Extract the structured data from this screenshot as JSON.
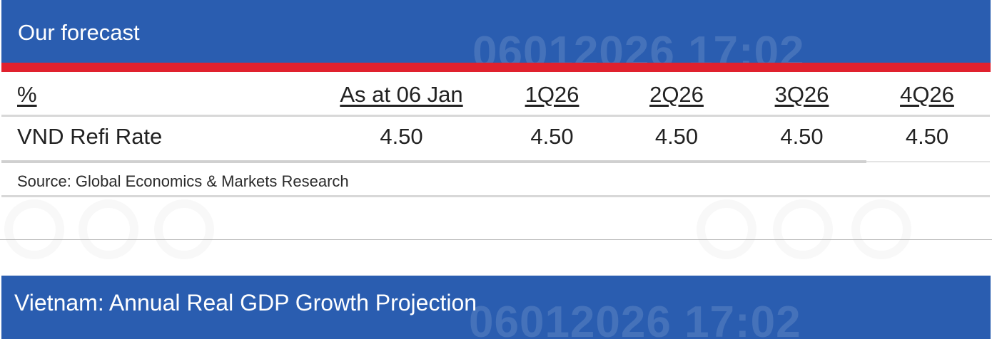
{
  "forecast_banner": {
    "title": "Our forecast",
    "watermark": "06012026 17:02"
  },
  "table": {
    "unit_label": "%",
    "columns": [
      "As at 06 Jan",
      "1Q26",
      "2Q26",
      "3Q26",
      "4Q26"
    ],
    "rows": [
      {
        "label": "VND Refi Rate",
        "values": [
          "4.50",
          "4.50",
          "4.50",
          "4.50",
          "4.50"
        ]
      }
    ]
  },
  "source": "Source: Global Economics & Markets Research",
  "gdp_banner": {
    "title": "Vietnam: Annual Real GDP Growth Projection",
    "watermark": "06012026 17:02"
  },
  "colors": {
    "banner": "#2a5db0",
    "accent_bar": "#e0212e",
    "rule": "#d8d8d8"
  }
}
